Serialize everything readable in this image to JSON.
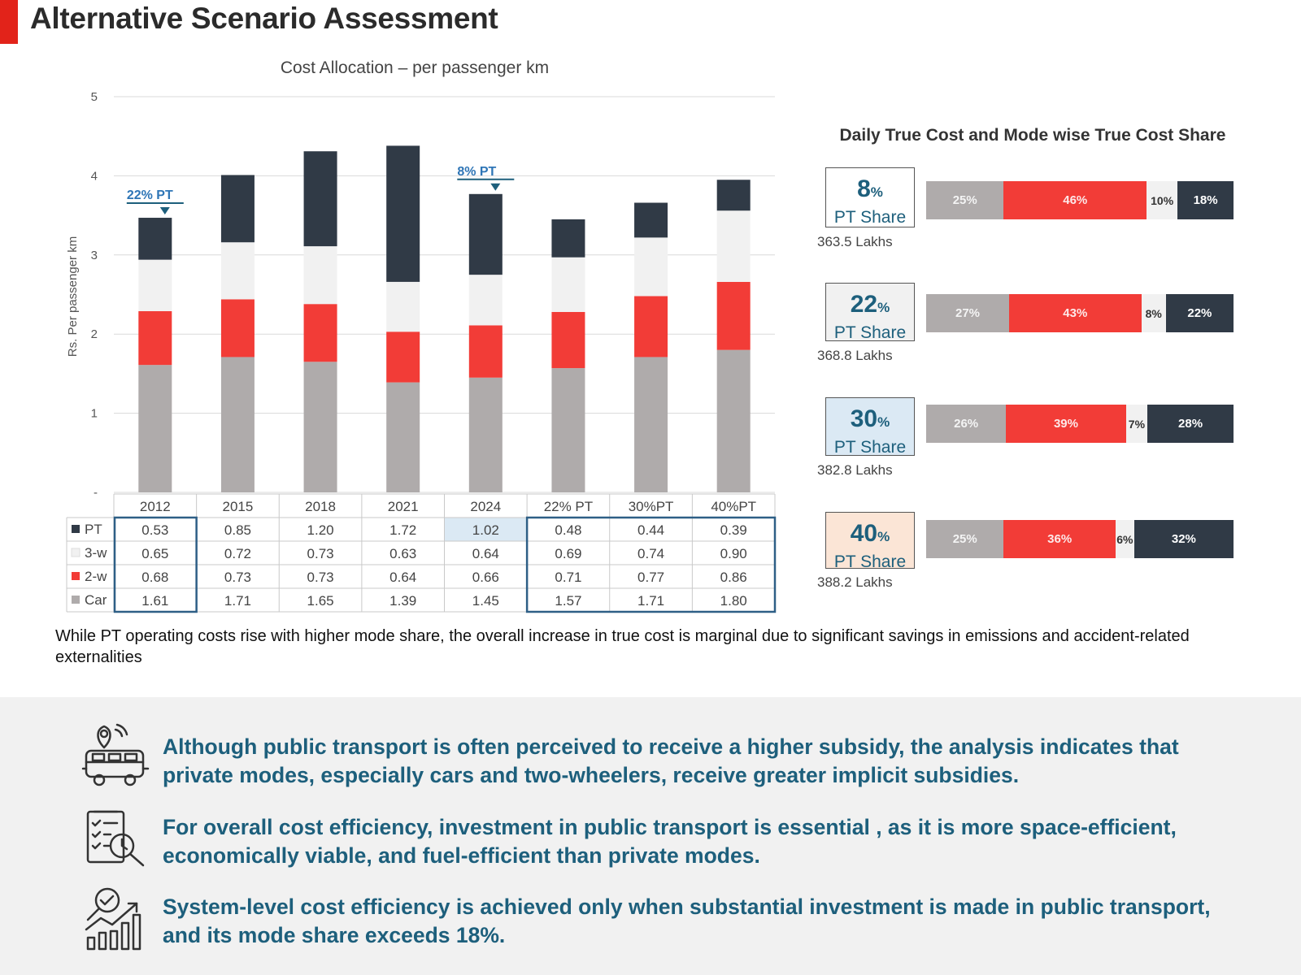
{
  "page": {
    "title": "Alternative Scenario Assessment",
    "note": "While PT operating costs rise with higher mode share, the overall increase in true cost is marginal due to significant savings in emissions and accident-related externalities"
  },
  "colors": {
    "pt": "#303a46",
    "three_w": "#f1f1f1",
    "two_w": "#f23c37",
    "car": "#afabab",
    "accent": "#e2231a",
    "teal": "#1d5f7c"
  },
  "chart_data": [
    {
      "type": "bar",
      "stacked": true,
      "title": "Cost Allocation – per passenger km",
      "ylabel": "Rs. Per passenger km",
      "xlabel": "",
      "ylim": [
        0,
        5
      ],
      "yticks": [
        "-",
        "1",
        "2",
        "3",
        "4",
        "5"
      ],
      "grid": true,
      "categories": [
        "2012",
        "2015",
        "2018",
        "2021",
        "2024",
        "22% PT",
        "30%PT",
        "40%PT"
      ],
      "series": [
        {
          "name": "Car",
          "key": "car",
          "values": [
            1.61,
            1.71,
            1.65,
            1.39,
            1.45,
            1.57,
            1.71,
            1.8
          ]
        },
        {
          "name": "2-w",
          "key": "two_w",
          "values": [
            0.68,
            0.73,
            0.73,
            0.64,
            0.66,
            0.71,
            0.77,
            0.86
          ]
        },
        {
          "name": "3-w",
          "key": "three_w",
          "values": [
            0.65,
            0.72,
            0.73,
            0.63,
            0.64,
            0.69,
            0.74,
            0.9
          ]
        },
        {
          "name": "PT",
          "key": "pt",
          "values": [
            0.53,
            0.85,
            1.2,
            1.72,
            1.02,
            0.48,
            0.44,
            0.39
          ]
        }
      ],
      "table_row_order": [
        "PT",
        "3-w",
        "2-w",
        "Car"
      ],
      "annotations": [
        {
          "text": "22% PT",
          "category": "2012"
        },
        {
          "text": "8% PT",
          "category": "2024"
        }
      ]
    },
    {
      "type": "bar",
      "orientation": "horizontal",
      "stacked": true,
      "percent": true,
      "title": "Daily True Cost and Mode wise True Cost Share",
      "scenarios": [
        {
          "pt_share": "8",
          "unit": "%",
          "label": "PT Share",
          "total": "363.5 Lakhs",
          "box_color": "#ffffff",
          "segments": [
            {
              "key": "car",
              "value": 25,
              "label": "25%"
            },
            {
              "key": "two_w",
              "value": 46,
              "label": "46%"
            },
            {
              "key": "three_w",
              "value": 10,
              "label": "10%"
            },
            {
              "key": "pt",
              "value": 18,
              "label": "18%"
            }
          ]
        },
        {
          "pt_share": "22",
          "unit": "%",
          "label": "PT Share",
          "total": "368.8 Lakhs",
          "box_color": "#f1f1f1",
          "segments": [
            {
              "key": "car",
              "value": 27,
              "label": "27%"
            },
            {
              "key": "two_w",
              "value": 43,
              "label": "43%"
            },
            {
              "key": "three_w",
              "value": 8,
              "label": "8%"
            },
            {
              "key": "pt",
              "value": 22,
              "label": "22%"
            }
          ]
        },
        {
          "pt_share": "30",
          "unit": "%",
          "label": "PT Share",
          "total": "382.8 Lakhs",
          "box_color": "#dbe9f4",
          "segments": [
            {
              "key": "car",
              "value": 26,
              "label": "26%"
            },
            {
              "key": "two_w",
              "value": 39,
              "label": "39%"
            },
            {
              "key": "three_w",
              "value": 7,
              "label": "7%"
            },
            {
              "key": "pt",
              "value": 28,
              "label": "28%"
            }
          ]
        },
        {
          "pt_share": "40",
          "unit": "%",
          "label": "PT Share",
          "total": "388.2 Lakhs",
          "box_color": "#fbe5d6",
          "segments": [
            {
              "key": "car",
              "value": 25,
              "label": "25%"
            },
            {
              "key": "two_w",
              "value": 36,
              "label": "36%"
            },
            {
              "key": "three_w",
              "value": 6,
              "label": "6%"
            },
            {
              "key": "pt",
              "value": 32,
              "label": "32%"
            }
          ]
        }
      ]
    }
  ],
  "points": [
    {
      "icon": "transit-location-icon",
      "text": "Although public transport is often perceived to receive a higher subsidy, the analysis indicates that private modes, especially cars and two-wheelers, receive greater implicit subsidies."
    },
    {
      "icon": "checklist-magnifier-icon",
      "text": "For overall cost efficiency, investment in public transport is essential , as it is more space-efficient, economically viable, and fuel-efficient than private modes."
    },
    {
      "icon": "growth-chart-icon",
      "text": "System-level cost efficiency is achieved only when substantial investment is made in public transport, and its mode share exceeds 18%."
    }
  ]
}
